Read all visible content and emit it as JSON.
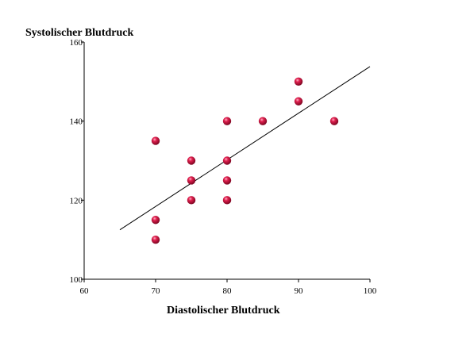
{
  "chart_data": {
    "type": "scatter",
    "title": "",
    "xlabel": "Diastolischer Blutdruck",
    "ylabel": "Systolischer Blutdruck",
    "xlim": [
      60,
      100
    ],
    "ylim": [
      100,
      160
    ],
    "xticks": [
      60,
      70,
      80,
      90,
      100
    ],
    "yticks": [
      100,
      120,
      140,
      160
    ],
    "grid": false,
    "points": [
      {
        "x": 70,
        "y": 135
      },
      {
        "x": 70,
        "y": 115
      },
      {
        "x": 70,
        "y": 110
      },
      {
        "x": 75,
        "y": 130
      },
      {
        "x": 75,
        "y": 125
      },
      {
        "x": 75,
        "y": 120
      },
      {
        "x": 80,
        "y": 140
      },
      {
        "x": 80,
        "y": 130
      },
      {
        "x": 80,
        "y": 125
      },
      {
        "x": 80,
        "y": 120
      },
      {
        "x": 85,
        "y": 140
      },
      {
        "x": 90,
        "y": 150
      },
      {
        "x": 90,
        "y": 145
      },
      {
        "x": 95,
        "y": 140
      }
    ],
    "regression_line": {
      "x": [
        65,
        100
      ],
      "y": [
        112.5,
        153.8
      ]
    },
    "colors": {
      "marker": "#c0103a",
      "line": "#000000",
      "axis": "#000000"
    }
  }
}
